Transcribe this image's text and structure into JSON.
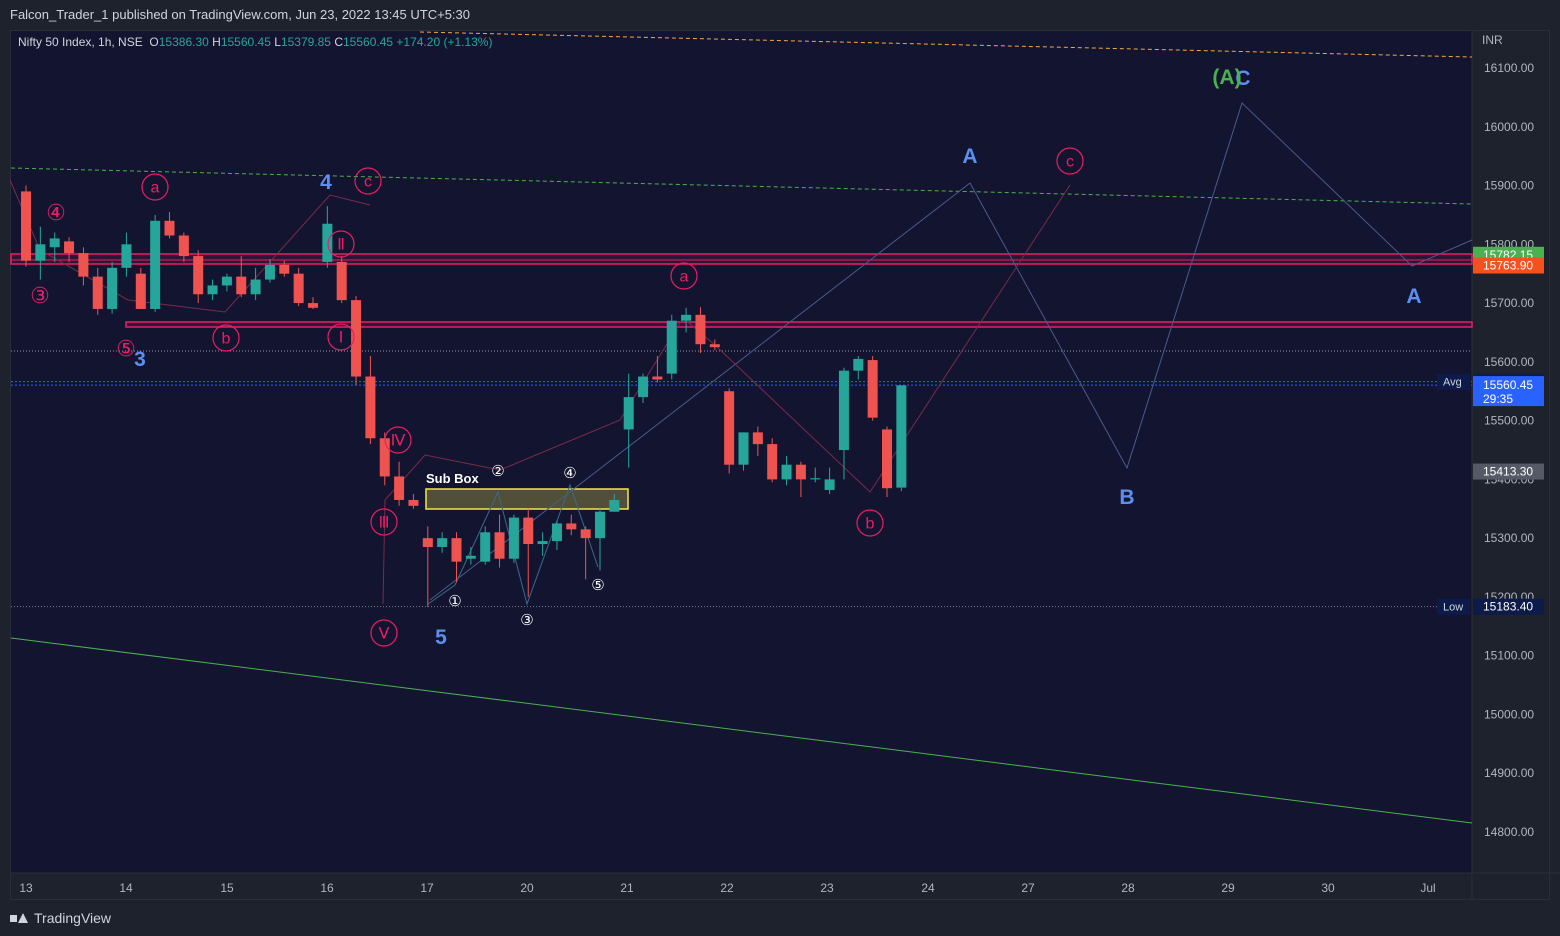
{
  "header": {
    "published_line": "Falcon_Trader_1 published on TradingView.com, Jun 23, 2022 13:45 UTC+5:30"
  },
  "legend": {
    "symbol": "Nifty 50 Index, 1h, NSE",
    "o_label": "O",
    "o_value": "15386.30",
    "h_label": "H",
    "h_value": "15560.45",
    "l_label": "L",
    "l_value": "15379.85",
    "c_label": "C",
    "c_value": "15560.45",
    "change": "+174.20 (+1.13%)"
  },
  "footer": {
    "brand": "TradingView"
  },
  "colors": {
    "background": "#131530",
    "up": "#26a69a",
    "down": "#ef5350",
    "wave_blue": "#5b8ff0",
    "wave_pink": "#e91e63",
    "wave_green": "#4caf50",
    "subbox": "#f5e64b"
  },
  "chart_data": {
    "type": "candlestick",
    "symbol": "Nifty 50 Index",
    "interval": "1h",
    "exchange": "NSE",
    "currency": "INR",
    "ylim": [
      14720,
      16200
    ],
    "y_ticks": [
      "14800.00",
      "14900.00",
      "15000.00",
      "15100.00",
      "15200.00",
      "15300.00",
      "15400.00",
      "15500.00",
      "15600.00",
      "15700.00",
      "15800.00",
      "15900.00",
      "16000.00",
      "16100.00"
    ],
    "x_ticks": [
      "13",
      "14",
      "15",
      "16",
      "17",
      "20",
      "21",
      "22",
      "23",
      "24",
      "27",
      "28",
      "29",
      "30",
      "Jul"
    ],
    "candles": [
      {
        "i": 0,
        "o": 15890,
        "h": 15900,
        "l": 15762,
        "c": 15772
      },
      {
        "i": 1,
        "o": 15772,
        "h": 15830,
        "l": 15740,
        "c": 15800
      },
      {
        "i": 2,
        "o": 15795,
        "h": 15820,
        "l": 15770,
        "c": 15810
      },
      {
        "i": 3,
        "o": 15805,
        "h": 15812,
        "l": 15770,
        "c": 15785
      },
      {
        "i": 4,
        "o": 15785,
        "h": 15795,
        "l": 15730,
        "c": 15745
      },
      {
        "i": 5,
        "o": 15745,
        "h": 15760,
        "l": 15680,
        "c": 15690
      },
      {
        "i": 6,
        "o": 15690,
        "h": 15770,
        "l": 15682,
        "c": 15760
      },
      {
        "i": 7,
        "o": 15760,
        "h": 15820,
        "l": 15745,
        "c": 15800
      },
      {
        "i": 8,
        "o": 15750,
        "h": 15760,
        "l": 15690,
        "c": 15690
      },
      {
        "i": 9,
        "o": 15690,
        "h": 15850,
        "l": 15685,
        "c": 15840
      },
      {
        "i": 10,
        "o": 15840,
        "h": 15855,
        "l": 15810,
        "c": 15815
      },
      {
        "i": 11,
        "o": 15815,
        "h": 15820,
        "l": 15770,
        "c": 15780
      },
      {
        "i": 12,
        "o": 15780,
        "h": 15790,
        "l": 15700,
        "c": 15715
      },
      {
        "i": 13,
        "o": 15715,
        "h": 15740,
        "l": 15705,
        "c": 15730
      },
      {
        "i": 14,
        "o": 15730,
        "h": 15750,
        "l": 15720,
        "c": 15745
      },
      {
        "i": 15,
        "o": 15745,
        "h": 15780,
        "l": 15710,
        "c": 15715
      },
      {
        "i": 16,
        "o": 15715,
        "h": 15760,
        "l": 15705,
        "c": 15740
      },
      {
        "i": 17,
        "o": 15740,
        "h": 15775,
        "l": 15735,
        "c": 15765
      },
      {
        "i": 18,
        "o": 15765,
        "h": 15772,
        "l": 15745,
        "c": 15750
      },
      {
        "i": 19,
        "o": 15750,
        "h": 15760,
        "l": 15695,
        "c": 15700
      },
      {
        "i": 20,
        "o": 15700,
        "h": 15710,
        "l": 15690,
        "c": 15692
      },
      {
        "i": 21,
        "o": 15770,
        "h": 15865,
        "l": 15760,
        "c": 15835
      },
      {
        "i": 22,
        "o": 15770,
        "h": 15780,
        "l": 15700,
        "c": 15705
      },
      {
        "i": 23,
        "o": 15705,
        "h": 15712,
        "l": 15560,
        "c": 15575
      },
      {
        "i": 24,
        "o": 15575,
        "h": 15610,
        "l": 15460,
        "c": 15470
      },
      {
        "i": 25,
        "o": 15470,
        "h": 15480,
        "l": 15390,
        "c": 15405
      },
      {
        "i": 26,
        "o": 15405,
        "h": 15430,
        "l": 15355,
        "c": 15365
      },
      {
        "i": 27,
        "o": 15365,
        "h": 15375,
        "l": 15350,
        "c": 15355
      },
      {
        "i": 28,
        "o": 15300,
        "h": 15320,
        "l": 15183,
        "c": 15285
      },
      {
        "i": 29,
        "o": 15285,
        "h": 15310,
        "l": 15275,
        "c": 15300
      },
      {
        "i": 30,
        "o": 15300,
        "h": 15310,
        "l": 15225,
        "c": 15260
      },
      {
        "i": 31,
        "o": 15265,
        "h": 15285,
        "l": 15255,
        "c": 15270
      },
      {
        "i": 32,
        "o": 15260,
        "h": 15320,
        "l": 15255,
        "c": 15310
      },
      {
        "i": 33,
        "o": 15310,
        "h": 15340,
        "l": 15250,
        "c": 15265
      },
      {
        "i": 34,
        "o": 15265,
        "h": 15340,
        "l": 15258,
        "c": 15335
      },
      {
        "i": 35,
        "o": 15335,
        "h": 15350,
        "l": 15200,
        "c": 15290
      },
      {
        "i": 36,
        "o": 15290,
        "h": 15310,
        "l": 15270,
        "c": 15295
      },
      {
        "i": 37,
        "o": 15295,
        "h": 15330,
        "l": 15280,
        "c": 15325
      },
      {
        "i": 38,
        "o": 15325,
        "h": 15340,
        "l": 15305,
        "c": 15315
      },
      {
        "i": 39,
        "o": 15315,
        "h": 15320,
        "l": 15230,
        "c": 15300
      },
      {
        "i": 40,
        "o": 15300,
        "h": 15350,
        "l": 15245,
        "c": 15345
      },
      {
        "i": 41,
        "o": 15345,
        "h": 15375,
        "l": 15345,
        "c": 15365
      },
      {
        "i": 42,
        "o": 15485,
        "h": 15580,
        "l": 15420,
        "c": 15540
      },
      {
        "i": 43,
        "o": 15540,
        "h": 15580,
        "l": 15530,
        "c": 15575
      },
      {
        "i": 44,
        "o": 15575,
        "h": 15610,
        "l": 15565,
        "c": 15570
      },
      {
        "i": 45,
        "o": 15580,
        "h": 15680,
        "l": 15570,
        "c": 15670
      },
      {
        "i": 46,
        "o": 15670,
        "h": 15692,
        "l": 15650,
        "c": 15680
      },
      {
        "i": 47,
        "o": 15680,
        "h": 15693,
        "l": 15615,
        "c": 15630
      },
      {
        "i": 48,
        "o": 15630,
        "h": 15638,
        "l": 15620,
        "c": 15625
      },
      {
        "i": 49,
        "o": 15550,
        "h": 15555,
        "l": 15410,
        "c": 15425
      },
      {
        "i": 50,
        "o": 15425,
        "h": 15480,
        "l": 15415,
        "c": 15480
      },
      {
        "i": 51,
        "o": 15480,
        "h": 15490,
        "l": 15440,
        "c": 15460
      },
      {
        "i": 52,
        "o": 15460,
        "h": 15470,
        "l": 15395,
        "c": 15400
      },
      {
        "i": 53,
        "o": 15400,
        "h": 15440,
        "l": 15390,
        "c": 15425
      },
      {
        "i": 54,
        "o": 15425,
        "h": 15430,
        "l": 15370,
        "c": 15400
      },
      {
        "i": 55,
        "o": 15400,
        "h": 15420,
        "l": 15395,
        "c": 15402
      },
      {
        "i": 56,
        "o": 15382,
        "h": 15420,
        "l": 15375,
        "c": 15400
      },
      {
        "i": 57,
        "o": 15450,
        "h": 15590,
        "l": 15400,
        "c": 15585
      },
      {
        "i": 58,
        "o": 15585,
        "h": 15610,
        "l": 15570,
        "c": 15605
      },
      {
        "i": 59,
        "o": 15603,
        "h": 15610,
        "l": 15500,
        "c": 15505
      },
      {
        "i": 60,
        "o": 15485,
        "h": 15490,
        "l": 15370,
        "c": 15385
      },
      {
        "i": 61,
        "o": 15386,
        "h": 15560,
        "l": 15380,
        "c": 15560
      }
    ],
    "price_lines": [
      {
        "label": "15782.15",
        "value": 15782.15,
        "color": "#4caf50"
      },
      {
        "label": "15763.90",
        "value": 15763.9,
        "color": "#f4511e"
      },
      {
        "label": "15566.30",
        "value": 15566.3,
        "color": "#0d1b4a",
        "tag": "Avg"
      },
      {
        "label": "15560.45",
        "value": 15560.45,
        "color": "#2962ff",
        "sub": "29:35"
      },
      {
        "label": "15413.30",
        "value": 15413.3,
        "color": "#555a66"
      },
      {
        "label": "15183.40",
        "value": 15183.4,
        "color": "#0d1b4a",
        "tag": "Low"
      }
    ],
    "annotations": {
      "sub_box_label": "Sub Box",
      "wave_labels_blue": [
        "3",
        "4",
        "5",
        "A",
        "B",
        "A",
        "C"
      ],
      "wave_label_green": "(A)",
      "circled_pink": [
        "a",
        "b",
        "c",
        "a",
        "b",
        "c",
        "④",
        "③",
        "⑤",
        "Ⅱ",
        "Ⅰ",
        "Ⅳ",
        "Ⅲ",
        "Ⅴ"
      ],
      "circled_white": [
        "①",
        "②",
        "③",
        "④",
        "⑤"
      ]
    }
  }
}
